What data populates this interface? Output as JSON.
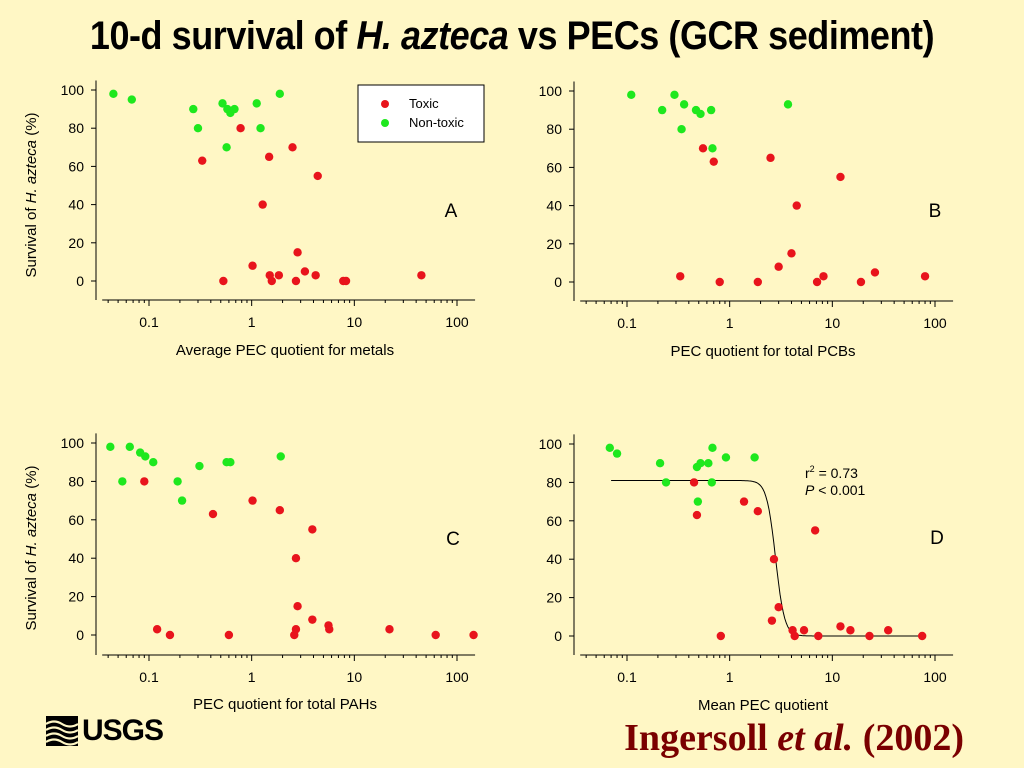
{
  "header": {
    "title_prefix": "10-d survival of ",
    "title_species": "H. azteca",
    "title_suffix": " vs PECs (GCR sediment)"
  },
  "footer": {
    "logo_text": "USGS",
    "citation_author": "Ingersoll ",
    "citation_etal": "et al.",
    "citation_year": " (2002)"
  },
  "colors": {
    "toxic": "#e8141c",
    "nontoxic": "#1ee81e",
    "background": "#fff7c5"
  },
  "chart_data": [
    {
      "id": "A",
      "type": "scatter",
      "panel_label": "A",
      "xlabel": "Average PEC quotient for metals",
      "ylabel_prefix": "Survival of ",
      "ylabel_species": "H. azteca",
      "ylabel_suffix": " (%)",
      "x_scale": "log",
      "xlim": [
        0.035,
        150
      ],
      "ylim": [
        -10,
        105
      ],
      "x_ticks": [
        0.1,
        1,
        10,
        100
      ],
      "x_tick_labels": [
        "0.1",
        "1",
        "10",
        "100"
      ],
      "y_ticks": [
        0,
        20,
        40,
        60,
        80,
        100
      ],
      "legend": {
        "position": "top-right",
        "entries": [
          "Toxic",
          "Non-toxic"
        ]
      },
      "series": [
        {
          "name": "Toxic",
          "points": [
            [
              0.33,
              63
            ],
            [
              0.78,
              80
            ],
            [
              1.28,
              40
            ],
            [
              1.48,
              65
            ],
            [
              2.5,
              70
            ],
            [
              4.4,
              55
            ],
            [
              1.02,
              8
            ],
            [
              2.8,
              15
            ],
            [
              0.53,
              0
            ],
            [
              1.5,
              3
            ],
            [
              1.57,
              0
            ],
            [
              1.84,
              3
            ],
            [
              2.7,
              0
            ],
            [
              3.3,
              5
            ],
            [
              4.2,
              3
            ],
            [
              7.8,
              0
            ],
            [
              8.3,
              0
            ],
            [
              45,
              3
            ]
          ]
        },
        {
          "name": "Non-toxic",
          "points": [
            [
              0.045,
              98
            ],
            [
              0.068,
              95
            ],
            [
              0.27,
              90
            ],
            [
              0.52,
              93
            ],
            [
              0.58,
              90
            ],
            [
              0.62,
              88
            ],
            [
              0.68,
              90
            ],
            [
              0.3,
              80
            ],
            [
              1.12,
              93
            ],
            [
              1.88,
              98
            ],
            [
              1.22,
              80
            ],
            [
              0.57,
              70
            ]
          ]
        }
      ]
    },
    {
      "id": "B",
      "type": "scatter",
      "panel_label": "B",
      "xlabel": "PEC quotient for total PCBs",
      "ylabel_prefix": "",
      "ylabel_species": "",
      "ylabel_suffix": "",
      "x_scale": "log",
      "xlim": [
        0.035,
        150
      ],
      "ylim": [
        -10,
        105
      ],
      "x_ticks": [
        0.1,
        1,
        10,
        100
      ],
      "x_tick_labels": [
        "0.1",
        "1",
        "10",
        "100"
      ],
      "y_ticks": [
        0,
        20,
        40,
        60,
        80,
        100
      ],
      "series": [
        {
          "name": "Toxic",
          "points": [
            [
              0.55,
              70
            ],
            [
              0.7,
              63
            ],
            [
              2.5,
              65
            ],
            [
              12,
              55
            ],
            [
              4.5,
              40
            ],
            [
              4,
              15
            ],
            [
              3,
              8
            ],
            [
              0.33,
              3
            ],
            [
              0.8,
              0
            ],
            [
              1.88,
              0
            ],
            [
              7.1,
              0
            ],
            [
              8.2,
              3
            ],
            [
              19,
              0
            ],
            [
              26,
              5
            ],
            [
              80,
              3
            ]
          ]
        },
        {
          "name": "Non-toxic",
          "points": [
            [
              0.11,
              98
            ],
            [
              0.29,
              98
            ],
            [
              0.22,
              90
            ],
            [
              0.36,
              93
            ],
            [
              0.47,
              90
            ],
            [
              0.52,
              88
            ],
            [
              0.66,
              90
            ],
            [
              0.34,
              80
            ],
            [
              0.68,
              70
            ],
            [
              3.7,
              93
            ]
          ]
        }
      ]
    },
    {
      "id": "C",
      "type": "scatter",
      "panel_label": "C",
      "xlabel": "PEC quotient for total PAHs",
      "ylabel_prefix": "Survival of ",
      "ylabel_species": "H. azteca",
      "ylabel_suffix": " (%)",
      "x_scale": "log",
      "xlim": [
        0.035,
        150
      ],
      "ylim": [
        -10,
        105
      ],
      "x_ticks": [
        0.1,
        1,
        10,
        100
      ],
      "x_tick_labels": [
        "0.1",
        "1",
        "10",
        "100"
      ],
      "y_ticks": [
        0,
        20,
        40,
        60,
        80,
        100
      ],
      "series": [
        {
          "name": "Toxic",
          "points": [
            [
              0.09,
              80
            ],
            [
              0.42,
              63
            ],
            [
              1.02,
              70
            ],
            [
              1.88,
              65
            ],
            [
              3.9,
              55
            ],
            [
              2.7,
              40
            ],
            [
              2.8,
              15
            ],
            [
              3.9,
              8
            ],
            [
              0.12,
              3
            ],
            [
              0.16,
              0
            ],
            [
              0.6,
              0
            ],
            [
              2.6,
              0
            ],
            [
              2.7,
              3
            ],
            [
              5.6,
              5
            ],
            [
              5.7,
              3
            ],
            [
              22,
              3
            ],
            [
              62,
              0
            ],
            [
              145,
              0
            ]
          ]
        },
        {
          "name": "Non-toxic",
          "points": [
            [
              0.042,
              98
            ],
            [
              0.065,
              98
            ],
            [
              0.082,
              95
            ],
            [
              0.092,
              93
            ],
            [
              0.11,
              90
            ],
            [
              0.055,
              80
            ],
            [
              0.19,
              80
            ],
            [
              0.21,
              70
            ],
            [
              0.31,
              88
            ],
            [
              0.57,
              90
            ],
            [
              0.62,
              90
            ],
            [
              1.92,
              93
            ]
          ]
        }
      ]
    },
    {
      "id": "D",
      "type": "scatter",
      "panel_label": "D",
      "xlabel": "Mean PEC quotient",
      "ylabel_prefix": "",
      "ylabel_species": "",
      "ylabel_suffix": "",
      "x_scale": "log",
      "xlim": [
        0.035,
        150
      ],
      "ylim": [
        -10,
        105
      ],
      "x_ticks": [
        0.1,
        1,
        10,
        100
      ],
      "x_tick_labels": [
        "0.1",
        "1",
        "10",
        "100"
      ],
      "y_ticks": [
        0,
        20,
        40,
        60,
        80,
        100
      ],
      "annotation": {
        "r2_label": "r",
        "r2_sup": "2",
        "r2_value": " = 0.73",
        "p_label": "P",
        "p_value": " < 0.001"
      },
      "fit_curve": {
        "type": "logistic",
        "upper": 81,
        "lower": 0,
        "x50": 2.8,
        "slope": 10
      },
      "series": [
        {
          "name": "Toxic",
          "points": [
            [
              0.45,
              80
            ],
            [
              0.48,
              63
            ],
            [
              1.38,
              70
            ],
            [
              1.88,
              65
            ],
            [
              2.7,
              40
            ],
            [
              6.8,
              55
            ],
            [
              3,
              15
            ],
            [
              2.58,
              8
            ],
            [
              0.82,
              0
            ],
            [
              4.3,
              0
            ],
            [
              4.1,
              3
            ],
            [
              5.3,
              3
            ],
            [
              7.3,
              0
            ],
            [
              12,
              5
            ],
            [
              15,
              3
            ],
            [
              23,
              0
            ],
            [
              35,
              3
            ],
            [
              75,
              0
            ]
          ]
        },
        {
          "name": "Non-toxic",
          "points": [
            [
              0.068,
              98
            ],
            [
              0.08,
              95
            ],
            [
              0.21,
              90
            ],
            [
              0.24,
              80
            ],
            [
              0.48,
              88
            ],
            [
              0.52,
              90
            ],
            [
              0.62,
              90
            ],
            [
              0.68,
              98
            ],
            [
              0.67,
              80
            ],
            [
              0.49,
              70
            ],
            [
              0.92,
              93
            ],
            [
              1.75,
              93
            ]
          ]
        }
      ]
    }
  ]
}
